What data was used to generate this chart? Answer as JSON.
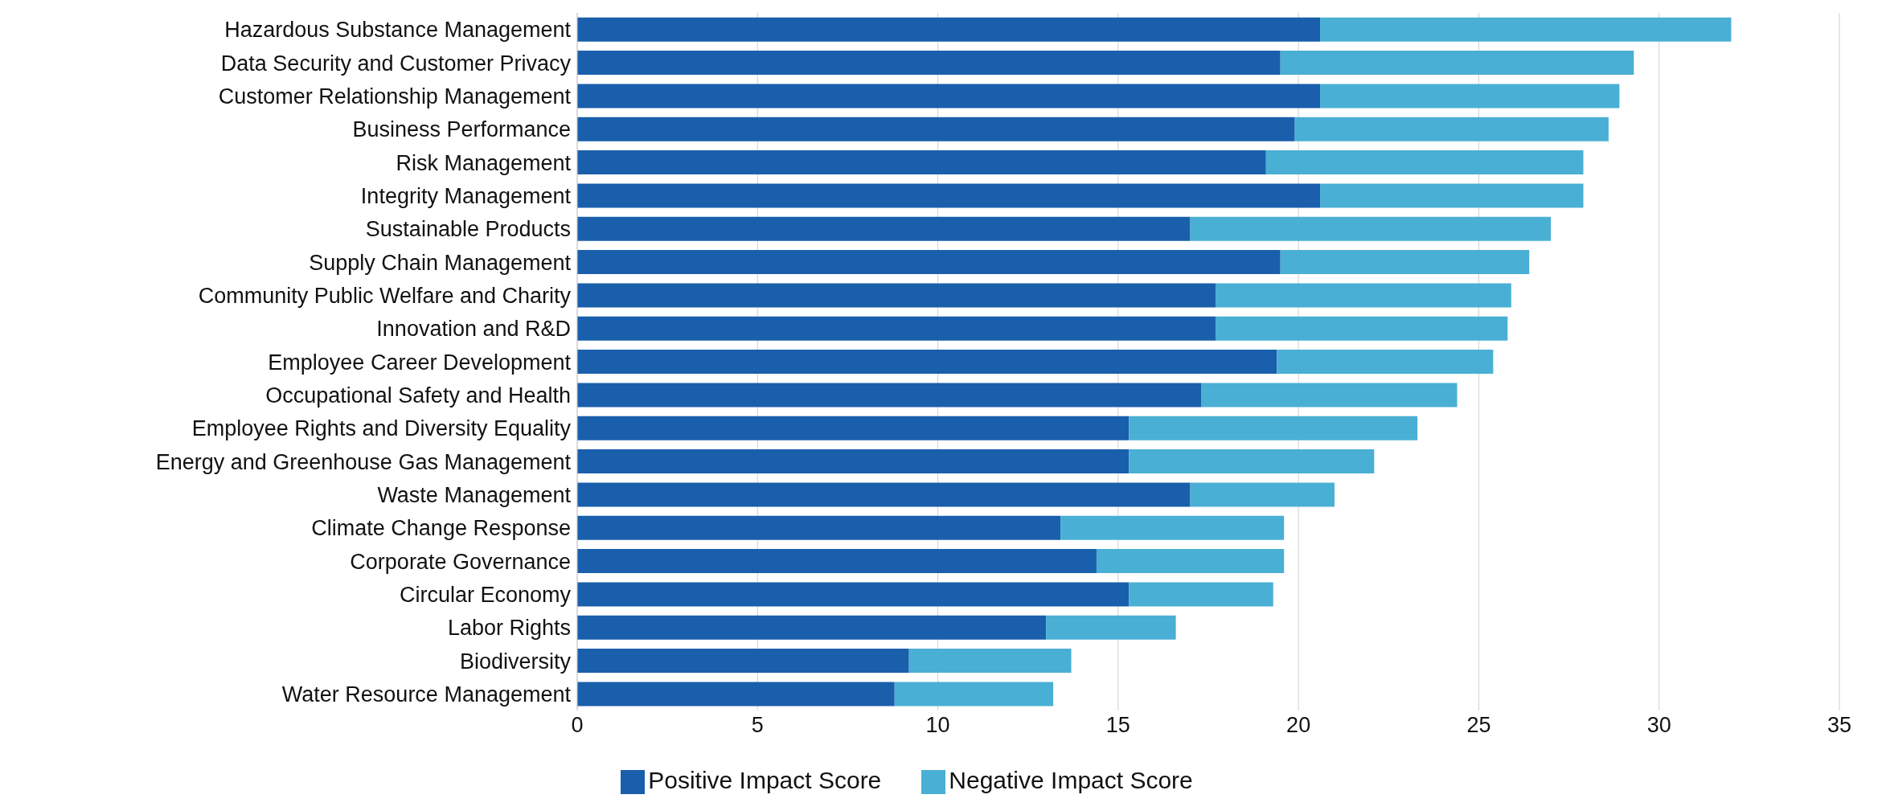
{
  "chart_data": {
    "type": "bar",
    "orientation": "horizontal",
    "stacked": true,
    "categories": [
      "Hazardous Substance Management",
      "Data Security and Customer Privacy",
      "Customer Relationship Management",
      "Business Performance",
      "Risk Management",
      "Integrity Management",
      "Sustainable Products",
      "Supply Chain Management",
      "Community Public Welfare and Charity",
      "Innovation and R&D",
      "Employee Career Development",
      "Occupational Safety and Health",
      "Employee Rights and Diversity Equality",
      "Energy and Greenhouse Gas Management",
      "Waste Management",
      "Climate Change Response",
      "Corporate Governance",
      "Circular Economy",
      "Labor Rights",
      "Biodiversity",
      "Water Resource Management"
    ],
    "series": [
      {
        "name": "Positive Impact Score",
        "color": "#195fac",
        "values": [
          20.6,
          19.5,
          20.6,
          19.9,
          19.1,
          20.6,
          17.0,
          19.5,
          17.7,
          17.7,
          19.4,
          17.3,
          15.3,
          15.3,
          17.0,
          13.4,
          14.4,
          15.3,
          13.0,
          9.2,
          8.8
        ]
      },
      {
        "name": "Negative Impact Score",
        "color": "#4aafd4",
        "values": [
          11.4,
          9.8,
          8.3,
          8.7,
          8.8,
          7.3,
          10.0,
          6.9,
          8.2,
          8.1,
          6.0,
          7.1,
          8.0,
          6.8,
          4.0,
          6.2,
          5.2,
          4.0,
          3.6,
          4.5,
          4.4
        ]
      }
    ],
    "xlim": [
      0,
      35
    ],
    "xticks": [
      0,
      5,
      10,
      15,
      20,
      25,
      30,
      35
    ],
    "grid": "x",
    "legend": "bottom"
  }
}
